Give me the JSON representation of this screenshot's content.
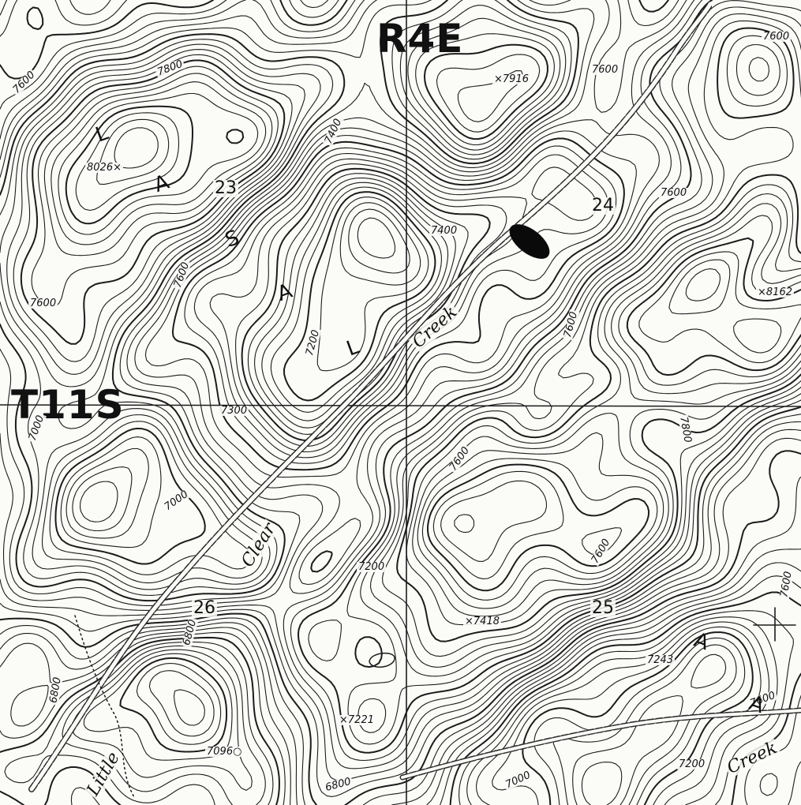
{
  "map": {
    "grid_labels": {
      "range": "R4E",
      "township": "T11S"
    },
    "sections": [
      "23",
      "24",
      "25",
      "26"
    ],
    "spot_elevations": [
      "8026",
      "7916",
      "8162",
      "7418",
      "7243",
      "7221",
      "7096"
    ],
    "contour_labels": [
      "7800",
      "7600",
      "7600",
      "7600",
      "7600",
      "7400",
      "7400",
      "7600",
      "7600",
      "7200",
      "7300",
      "7000",
      "7600",
      "7800",
      "7600",
      "7200",
      "7600",
      "6800",
      "6800",
      "7000",
      "7200",
      "6800",
      "7000",
      "7600",
      "7600"
    ],
    "creek_labels": {
      "clear": "Clear",
      "creek_upper": "Creek",
      "little": "Little",
      "creek_lower": "Creek"
    },
    "handwritten_letters": [
      "L",
      "A",
      "S",
      "A",
      "L",
      "A",
      "A"
    ]
  }
}
